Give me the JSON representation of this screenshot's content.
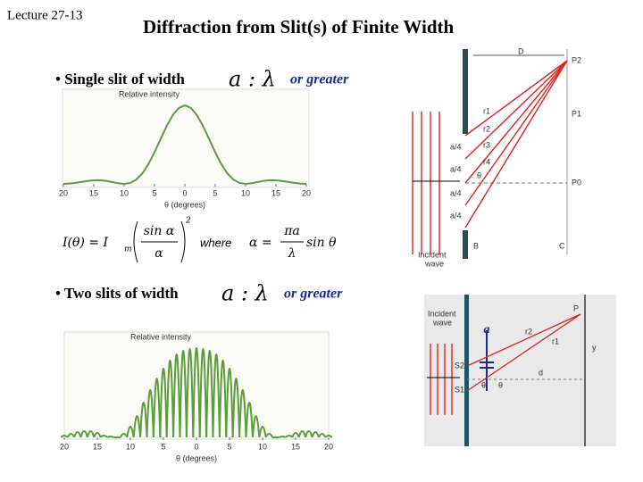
{
  "header": {
    "lecture": "Lecture 27-13",
    "title": "Diffraction from Slit(s) of Finite Width"
  },
  "bullet1": {
    "text": "• Single slit of width",
    "symbol": "a : λ",
    "suffix": "or greater"
  },
  "bullet2": {
    "text": "• Two slits of width",
    "symbol": "a : λ",
    "suffix": "or greater"
  },
  "formula": {
    "lhs": "I(θ) = I",
    "sub": "m",
    "num": "sin α",
    "den": "α",
    "power": "2",
    "where": "where",
    "alpha": "α =",
    "anum": "πa",
    "aden": "λ",
    "sin": "sin θ"
  },
  "plot1": {
    "type": "line",
    "ylabel": "Relative intensity",
    "xlabel": "θ (degrees)",
    "color": "#5a9e3a",
    "xlim": [
      -20,
      20
    ],
    "ylim": [
      0,
      1
    ],
    "xticks": [
      {
        "value": -20,
        "label": "20"
      },
      {
        "value": -15,
        "label": "15"
      },
      {
        "value": -10,
        "label": "10"
      },
      {
        "value": -5,
        "label": "5"
      },
      0,
      5,
      10,
      15,
      20
    ],
    "x": [
      -20,
      -19,
      -18,
      -17,
      -16,
      -15,
      -14,
      -13,
      -12,
      -11,
      -10,
      -9,
      -8,
      -7,
      -6,
      -5,
      -4,
      -3,
      -2,
      -1,
      0,
      1,
      2,
      3,
      4,
      5,
      6,
      7,
      8,
      9,
      10,
      11,
      12,
      13,
      14,
      15,
      16,
      17,
      18,
      19,
      20
    ],
    "values": [
      0.0,
      0.004,
      0.013,
      0.025,
      0.037,
      0.046,
      0.047,
      0.039,
      0.024,
      0.008,
      0.0,
      0.012,
      0.054,
      0.133,
      0.252,
      0.402,
      0.57,
      0.735,
      0.874,
      0.967,
      1.0,
      0.967,
      0.874,
      0.735,
      0.57,
      0.402,
      0.252,
      0.133,
      0.054,
      0.012,
      0.0,
      0.008,
      0.024,
      0.039,
      0.047,
      0.046,
      0.037,
      0.025,
      0.013,
      0.004,
      0.0
    ]
  },
  "plot2": {
    "type": "fringes",
    "ylabel": "Relative intensity",
    "xlabel": "θ (degrees)",
    "color": "#5a9e3a",
    "xlim": [
      -20,
      20
    ],
    "ylim": [
      0,
      1
    ],
    "xticks": [
      {
        "value": -20,
        "label": "20"
      },
      {
        "value": -15,
        "label": "15"
      },
      {
        "value": -10,
        "label": "10"
      },
      {
        "value": -5,
        "label": "5"
      },
      0,
      5,
      10,
      15,
      20
    ],
    "x": [
      -20,
      -19,
      -18,
      -17,
      -16,
      -15,
      -14,
      -13,
      -12,
      -11,
      -10,
      -9,
      -8,
      -7,
      -6,
      -5,
      -4,
      -3,
      -2,
      -1,
      0,
      1,
      2,
      3,
      4,
      5,
      6,
      7,
      8,
      9,
      10,
      11,
      12,
      13,
      14,
      15,
      16,
      17,
      18,
      19,
      20
    ],
    "values": [
      0.02,
      0.04,
      0.06,
      0.07,
      0.07,
      0.05,
      0.02,
      0.01,
      0.0,
      0.04,
      0.12,
      0.24,
      0.39,
      0.53,
      0.66,
      0.77,
      0.86,
      0.93,
      0.97,
      0.99,
      1.0,
      0.99,
      0.97,
      0.93,
      0.86,
      0.77,
      0.66,
      0.53,
      0.39,
      0.24,
      0.12,
      0.04,
      0.0,
      0.01,
      0.02,
      0.05,
      0.07,
      0.07,
      0.06,
      0.04,
      0.02
    ]
  },
  "diagram1": {
    "D": "D",
    "P2": "P2",
    "P1": "P1",
    "P0": "P0",
    "r1": "r1",
    "r2": "r2",
    "r3": "r3",
    "r4": "r4",
    "a4": "a/4",
    "theta": "θ",
    "B": "B",
    "C": "C",
    "incident": "Incident",
    "wave": "wave"
  },
  "diagram2": {
    "incident": "Incident",
    "wave": "wave",
    "a": "a",
    "P": "P",
    "r2": "r2",
    "r1": "r1",
    "y": "y",
    "S2": "S2",
    "S1": "S1",
    "d": "d",
    "theta": "θ"
  }
}
